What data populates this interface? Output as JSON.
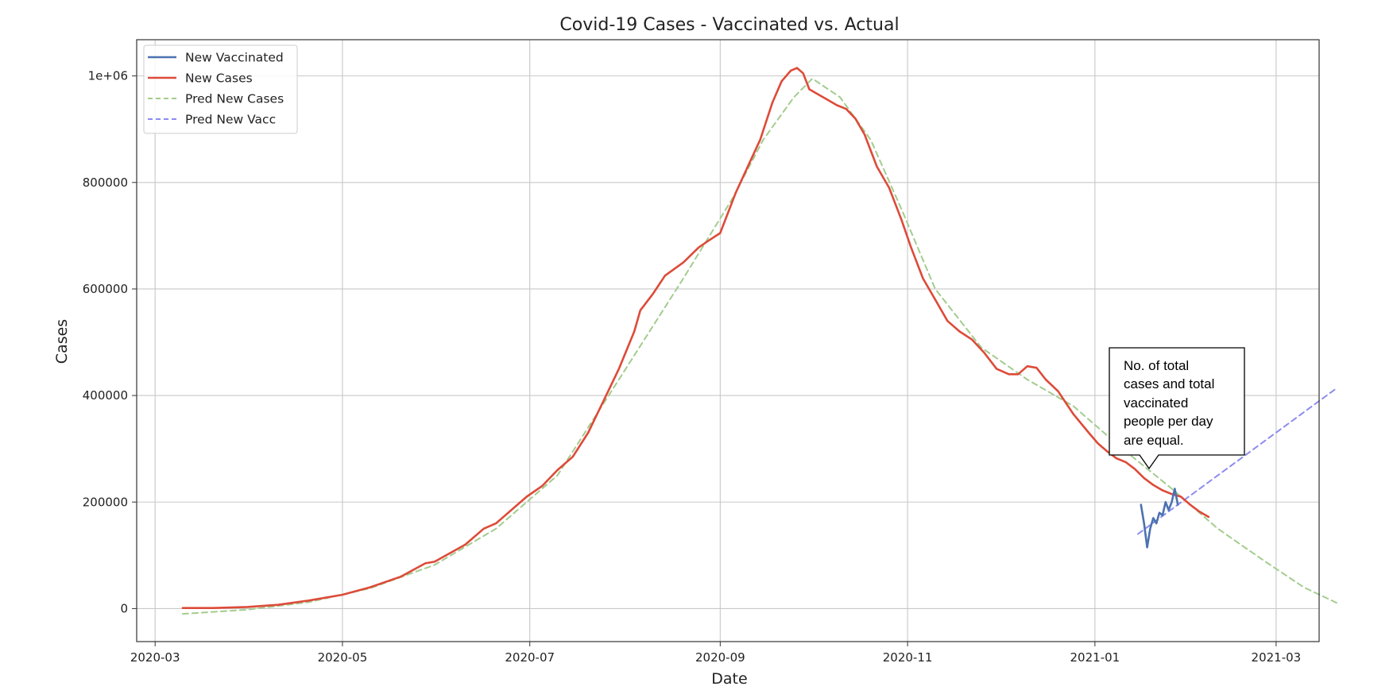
{
  "chart_data": {
    "type": "line",
    "title": "Covid-19 Cases - Vaccinated vs. Actual",
    "xlabel": "Date",
    "ylabel": "Cases",
    "xlim": [
      "2020-02-24",
      "2021-03-15"
    ],
    "ylim": [
      -62000,
      1068000
    ],
    "grid": true,
    "legend_position": "top-left",
    "x_ticks": [
      {
        "date": "2020-03-01",
        "label": "2020-03"
      },
      {
        "date": "2020-05-01",
        "label": "2020-05"
      },
      {
        "date": "2020-07-01",
        "label": "2020-07"
      },
      {
        "date": "2020-09-01",
        "label": "2020-09"
      },
      {
        "date": "2020-11-01",
        "label": "2020-11"
      },
      {
        "date": "2021-01-01",
        "label": "2021-01"
      },
      {
        "date": "2021-03-01",
        "label": "2021-03"
      }
    ],
    "y_ticks": [
      {
        "value": 0,
        "label": "0"
      },
      {
        "value": 200000,
        "label": "200000"
      },
      {
        "value": 400000,
        "label": "400000"
      },
      {
        "value": 600000,
        "label": "600000"
      },
      {
        "value": 800000,
        "label": "800000"
      },
      {
        "value": 1000000,
        "label": "1e+06"
      }
    ],
    "series": [
      {
        "name": "New Vaccinated",
        "color": "#4c72b0",
        "style": "solid",
        "points": [
          [
            "2021-01-16",
            195000
          ],
          [
            "2021-01-17",
            160000
          ],
          [
            "2021-01-18",
            115000
          ],
          [
            "2021-01-19",
            150000
          ],
          [
            "2021-01-20",
            170000
          ],
          [
            "2021-01-21",
            160000
          ],
          [
            "2021-01-22",
            180000
          ],
          [
            "2021-01-23",
            175000
          ],
          [
            "2021-01-24",
            200000
          ],
          [
            "2021-01-25",
            185000
          ],
          [
            "2021-01-26",
            200000
          ],
          [
            "2021-01-27",
            225000
          ],
          [
            "2021-01-28",
            195000
          ]
        ]
      },
      {
        "name": "New Cases",
        "color": "#dd4b39",
        "style": "solid",
        "points": [
          [
            "2020-03-10",
            1000
          ],
          [
            "2020-03-20",
            1000
          ],
          [
            "2020-03-31",
            3000
          ],
          [
            "2020-04-10",
            7000
          ],
          [
            "2020-04-20",
            15000
          ],
          [
            "2020-05-01",
            26000
          ],
          [
            "2020-05-10",
            40000
          ],
          [
            "2020-05-20",
            60000
          ],
          [
            "2020-05-28",
            85000
          ],
          [
            "2020-05-31",
            88000
          ],
          [
            "2020-06-10",
            120000
          ],
          [
            "2020-06-16",
            150000
          ],
          [
            "2020-06-20",
            160000
          ],
          [
            "2020-06-30",
            210000
          ],
          [
            "2020-07-05",
            230000
          ],
          [
            "2020-07-10",
            260000
          ],
          [
            "2020-07-15",
            285000
          ],
          [
            "2020-07-20",
            330000
          ],
          [
            "2020-07-25",
            390000
          ],
          [
            "2020-07-30",
            450000
          ],
          [
            "2020-08-04",
            520000
          ],
          [
            "2020-08-06",
            560000
          ],
          [
            "2020-08-10",
            590000
          ],
          [
            "2020-08-14",
            625000
          ],
          [
            "2020-08-20",
            650000
          ],
          [
            "2020-08-25",
            678000
          ],
          [
            "2020-08-28",
            690000
          ],
          [
            "2020-09-01",
            705000
          ],
          [
            "2020-09-06",
            780000
          ],
          [
            "2020-09-10",
            830000
          ],
          [
            "2020-09-14",
            880000
          ],
          [
            "2020-09-18",
            950000
          ],
          [
            "2020-09-21",
            990000
          ],
          [
            "2020-09-24",
            1010000
          ],
          [
            "2020-09-26",
            1015000
          ],
          [
            "2020-09-28",
            1005000
          ],
          [
            "2020-09-30",
            975000
          ],
          [
            "2020-10-03",
            965000
          ],
          [
            "2020-10-06",
            955000
          ],
          [
            "2020-10-09",
            945000
          ],
          [
            "2020-10-12",
            938000
          ],
          [
            "2020-10-15",
            920000
          ],
          [
            "2020-10-18",
            890000
          ],
          [
            "2020-10-22",
            830000
          ],
          [
            "2020-10-26",
            790000
          ],
          [
            "2020-10-30",
            730000
          ],
          [
            "2020-11-02",
            680000
          ],
          [
            "2020-11-06",
            620000
          ],
          [
            "2020-11-10",
            580000
          ],
          [
            "2020-11-14",
            540000
          ],
          [
            "2020-11-18",
            520000
          ],
          [
            "2020-11-22",
            505000
          ],
          [
            "2020-11-26",
            480000
          ],
          [
            "2020-11-30",
            450000
          ],
          [
            "2020-12-04",
            440000
          ],
          [
            "2020-12-07",
            440000
          ],
          [
            "2020-12-10",
            455000
          ],
          [
            "2020-12-13",
            452000
          ],
          [
            "2020-12-16",
            430000
          ],
          [
            "2020-12-20",
            408000
          ],
          [
            "2020-12-25",
            365000
          ],
          [
            "2020-12-30",
            330000
          ],
          [
            "2021-01-02",
            310000
          ],
          [
            "2021-01-05",
            295000
          ],
          [
            "2021-01-08",
            282000
          ],
          [
            "2021-01-11",
            275000
          ],
          [
            "2021-01-14",
            262000
          ],
          [
            "2021-01-17",
            245000
          ],
          [
            "2021-01-20",
            232000
          ],
          [
            "2021-01-23",
            222000
          ],
          [
            "2021-01-26",
            215000
          ],
          [
            "2021-01-29",
            210000
          ],
          [
            "2021-02-01",
            195000
          ],
          [
            "2021-02-04",
            182000
          ],
          [
            "2021-02-07",
            172000
          ]
        ]
      },
      {
        "name": "Pred New Cases",
        "color": "#a3cc8e",
        "style": "dashed",
        "points": [
          [
            "2020-03-10",
            -10000
          ],
          [
            "2020-03-31",
            -2000
          ],
          [
            "2020-04-20",
            12000
          ],
          [
            "2020-05-10",
            38000
          ],
          [
            "2020-05-31",
            82000
          ],
          [
            "2020-06-20",
            150000
          ],
          [
            "2020-07-10",
            250000
          ],
          [
            "2020-07-30",
            430000
          ],
          [
            "2020-08-20",
            620000
          ],
          [
            "2020-09-05",
            770000
          ],
          [
            "2020-09-15",
            880000
          ],
          [
            "2020-09-25",
            960000
          ],
          [
            "2020-10-01",
            995000
          ],
          [
            "2020-10-10",
            960000
          ],
          [
            "2020-10-20",
            880000
          ],
          [
            "2020-10-30",
            750000
          ],
          [
            "2020-11-10",
            600000
          ],
          [
            "2020-11-25",
            490000
          ],
          [
            "2020-12-10",
            430000
          ],
          [
            "2020-12-25",
            380000
          ],
          [
            "2021-01-10",
            300000
          ],
          [
            "2021-01-25",
            230000
          ],
          [
            "2021-02-10",
            150000
          ],
          [
            "2021-02-25",
            90000
          ],
          [
            "2021-03-10",
            40000
          ],
          [
            "2021-03-21",
            10000
          ]
        ]
      },
      {
        "name": "Pred New Vacc",
        "color": "#8c8cf0",
        "style": "dashed",
        "points": [
          [
            "2021-01-15",
            140000
          ],
          [
            "2021-03-21",
            415000
          ]
        ]
      }
    ],
    "annotation": {
      "lines": [
        "No. of total",
        "cases and total",
        "vaccinated",
        "people per day",
        "are equal."
      ]
    }
  }
}
